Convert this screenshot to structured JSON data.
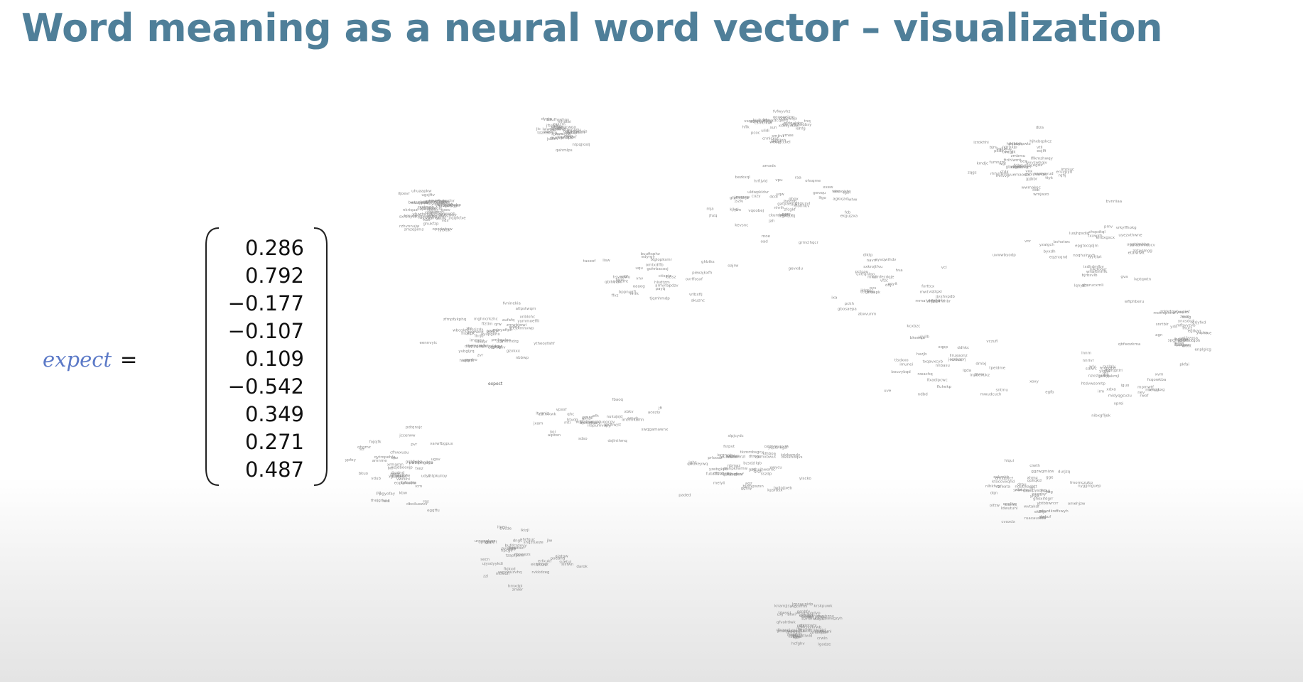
{
  "slide": {
    "title": "Word meaning as a neural word vector – visualization"
  },
  "equation": {
    "word": "expect",
    "equals": "=",
    "vector": [
      "0.286",
      "0.792",
      "−0.177",
      "−0.107",
      "0.109",
      "−0.542",
      "0.349",
      "0.271",
      "0.487"
    ]
  },
  "visualization": {
    "seed": 73,
    "label_count": 620,
    "emphasized_labels": [
      "expect"
    ]
  }
}
